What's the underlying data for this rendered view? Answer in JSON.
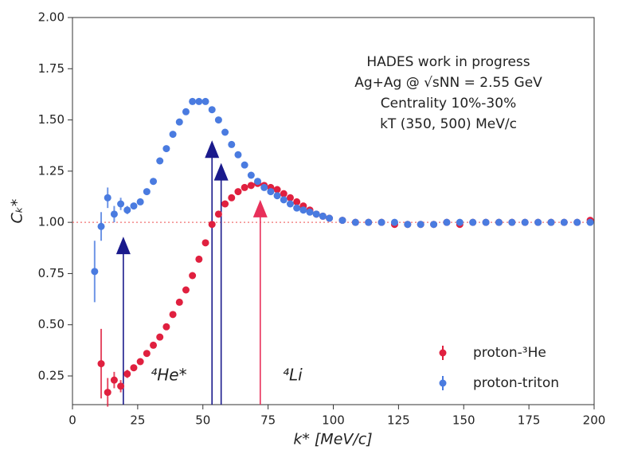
{
  "chart_data": {
    "type": "scatter",
    "xlabel": "k* [MeV/c]",
    "ylabel": "Cₖ*",
    "annotations": [
      "HADES work in progress",
      "Ag+Ag @ √sNN = 2.55 GeV",
      "Centrality 10%-30%",
      "kT (350, 500) MeV/c"
    ],
    "labels": [
      {
        "text": "⁴He*",
        "color": "#2b2b9e"
      },
      {
        "text": "⁴Li",
        "color": "#e8305a"
      }
    ],
    "xlim": [
      0,
      200
    ],
    "ylim": [
      0.11,
      2.0
    ],
    "xticks": [
      0,
      25,
      50,
      75,
      100,
      125,
      150,
      175,
      200
    ],
    "yticks": [
      {
        "value": 0.25,
        "label": "0.25"
      },
      {
        "value": 0.5,
        "label": "0.50"
      },
      {
        "value": 0.75,
        "label": "0.75"
      },
      {
        "value": 1.0,
        "label": "1.00"
      },
      {
        "value": 1.25,
        "label": "1.25"
      },
      {
        "value": 1.5,
        "label": "1.50"
      },
      {
        "value": 1.75,
        "label": "1.75"
      },
      {
        "value": 2.0,
        "label": "2.00"
      }
    ],
    "hline": 1.0,
    "hline_color": "#f07070",
    "arrows": [
      {
        "x": 19.5,
        "y": 0.93,
        "color": "#1a1a8c"
      },
      {
        "x": 53.5,
        "y": 1.4,
        "color": "#1a1a8c"
      },
      {
        "x": 57,
        "y": 1.29,
        "color": "#1a1a8c"
      },
      {
        "x": 72,
        "y": 1.11,
        "color": "#e8305a"
      }
    ],
    "legend": "lower right",
    "series": [
      {
        "name": "proton-³He",
        "color": "#e0203f",
        "x": [
          11,
          13.5,
          16,
          18.5,
          21,
          23.5,
          26,
          28.5,
          31,
          33.5,
          36,
          38.5,
          41,
          43.5,
          46,
          48.5,
          51,
          53.5,
          56,
          58.5,
          61,
          63.5,
          66,
          68.5,
          71,
          73.5,
          76,
          78.5,
          81,
          83.5,
          86,
          88.5,
          91,
          93.5,
          96,
          98.5,
          103.5,
          108.5,
          113.5,
          118.5,
          123.5,
          128.5,
          133.5,
          138.5,
          143.5,
          148.5,
          153.5,
          158.5,
          163.5,
          168.5,
          173.5,
          178.5,
          183.5,
          188.5,
          193.5,
          198.5
        ],
        "values": [
          0.31,
          0.17,
          0.23,
          0.2,
          0.26,
          0.29,
          0.32,
          0.36,
          0.4,
          0.44,
          0.49,
          0.55,
          0.61,
          0.67,
          0.74,
          0.82,
          0.9,
          0.99,
          1.04,
          1.09,
          1.12,
          1.15,
          1.17,
          1.18,
          1.19,
          1.18,
          1.17,
          1.16,
          1.14,
          1.12,
          1.1,
          1.08,
          1.06,
          1.04,
          1.03,
          1.02,
          1.01,
          1.0,
          1.0,
          1.0,
          0.99,
          0.99,
          0.99,
          0.99,
          1.0,
          0.99,
          1.0,
          1.0,
          1.0,
          1.0,
          1.0,
          1.0,
          1.0,
          1.0,
          1.0,
          1.01
        ],
        "errors": [
          0.17,
          0.07,
          0.04,
          0.03,
          0.02,
          0.01,
          0.01,
          0.01,
          0.01,
          0.01,
          0.01,
          0.01,
          0.01,
          0.01,
          0.01,
          0.01,
          0.01,
          0.01,
          0.01,
          0.01,
          0.01,
          0.01,
          0.01,
          0.01,
          0.01,
          0.01,
          0.01,
          0.01,
          0.01,
          0.01,
          0.01,
          0.01,
          0.01,
          0.01,
          0.01,
          0.01,
          0.01,
          0.01,
          0.01,
          0.01,
          0.01,
          0.01,
          0.01,
          0.01,
          0.01,
          0.01,
          0.01,
          0.01,
          0.01,
          0.01,
          0.01,
          0.01,
          0.01,
          0.01,
          0.01,
          0.01
        ]
      },
      {
        "name": "proton-triton",
        "color": "#4a7be0",
        "x": [
          8.5,
          11,
          13.5,
          16,
          18.5,
          21,
          23.5,
          26,
          28.5,
          31,
          33.5,
          36,
          38.5,
          41,
          43.5,
          46,
          48.5,
          51,
          53.5,
          56,
          58.5,
          61,
          63.5,
          66,
          68.5,
          71,
          73.5,
          76,
          78.5,
          81,
          83.5,
          86,
          88.5,
          91,
          93.5,
          96,
          98.5,
          103.5,
          108.5,
          113.5,
          118.5,
          123.5,
          128.5,
          133.5,
          138.5,
          143.5,
          148.5,
          153.5,
          158.5,
          163.5,
          168.5,
          173.5,
          178.5,
          183.5,
          188.5,
          193.5,
          198.5
        ],
        "values": [
          0.76,
          0.98,
          1.12,
          1.04,
          1.09,
          1.06,
          1.08,
          1.1,
          1.15,
          1.2,
          1.3,
          1.36,
          1.43,
          1.49,
          1.54,
          1.59,
          1.59,
          1.59,
          1.55,
          1.5,
          1.44,
          1.38,
          1.33,
          1.28,
          1.23,
          1.2,
          1.17,
          1.15,
          1.13,
          1.11,
          1.09,
          1.07,
          1.06,
          1.05,
          1.04,
          1.03,
          1.02,
          1.01,
          1.0,
          1.0,
          1.0,
          1.0,
          0.99,
          0.99,
          0.99,
          1.0,
          1.0,
          1.0,
          1.0,
          1.0,
          1.0,
          1.0,
          1.0,
          1.0,
          1.0,
          1.0,
          1.0
        ],
        "errors": [
          0.15,
          0.07,
          0.05,
          0.04,
          0.03,
          0.02,
          0.01,
          0.01,
          0.01,
          0.01,
          0.01,
          0.01,
          0.01,
          0.01,
          0.01,
          0.01,
          0.01,
          0.01,
          0.01,
          0.01,
          0.01,
          0.01,
          0.01,
          0.01,
          0.01,
          0.01,
          0.01,
          0.01,
          0.01,
          0.01,
          0.01,
          0.01,
          0.01,
          0.01,
          0.01,
          0.01,
          0.01,
          0.01,
          0.01,
          0.01,
          0.01,
          0.01,
          0.01,
          0.01,
          0.01,
          0.01,
          0.01,
          0.01,
          0.01,
          0.01,
          0.01,
          0.01,
          0.01,
          0.01,
          0.01,
          0.01,
          0.01
        ]
      }
    ]
  }
}
